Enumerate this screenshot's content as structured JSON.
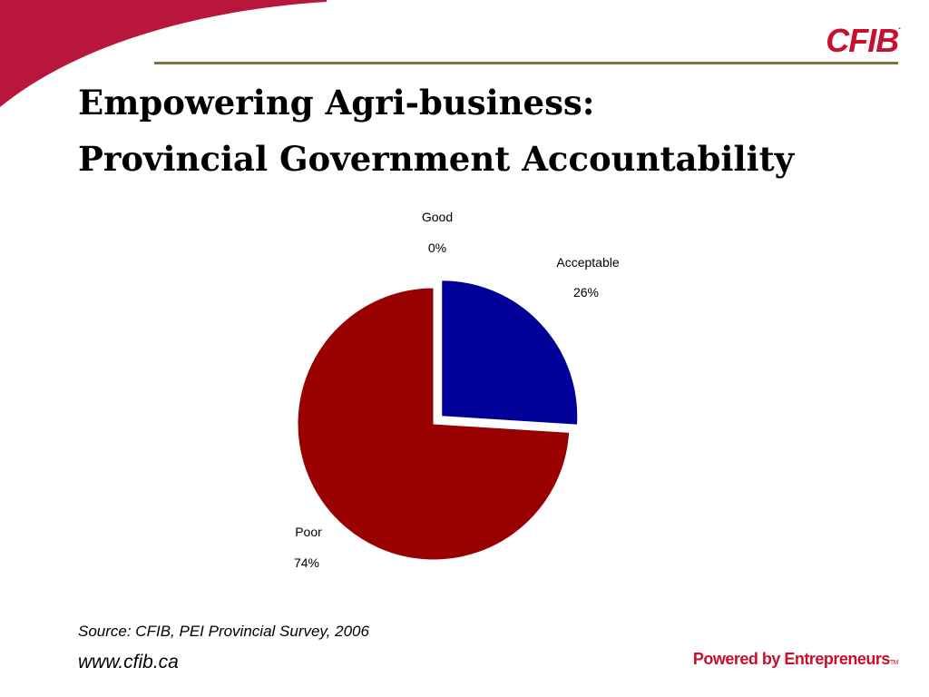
{
  "logo": {
    "text": "CFIB",
    "mark": "."
  },
  "title": {
    "line1": "Empowering Agri-business:",
    "line2": "Provincial Government Accountability"
  },
  "colors": {
    "accent": "#c8102e",
    "rule": "#7b7342",
    "swoosh": "#b8163a"
  },
  "chart_data": {
    "type": "pie",
    "slices": [
      {
        "label": "Good",
        "percent_label": "0%",
        "value": 0,
        "color": "#ffffff"
      },
      {
        "label": "Acceptable",
        "percent_label": "26%",
        "value": 26,
        "color": "#000099",
        "exploded": true
      },
      {
        "label": "Poor",
        "percent_label": "74%",
        "value": 74,
        "color": "#990000"
      }
    ],
    "legend": "none"
  },
  "footer": {
    "source": "Source: CFIB, PEI Provincial Survey, 2006",
    "website": "www.cfib.ca",
    "tagline": "Powered by Entrepreneurs",
    "tagline_mark": "TM"
  }
}
